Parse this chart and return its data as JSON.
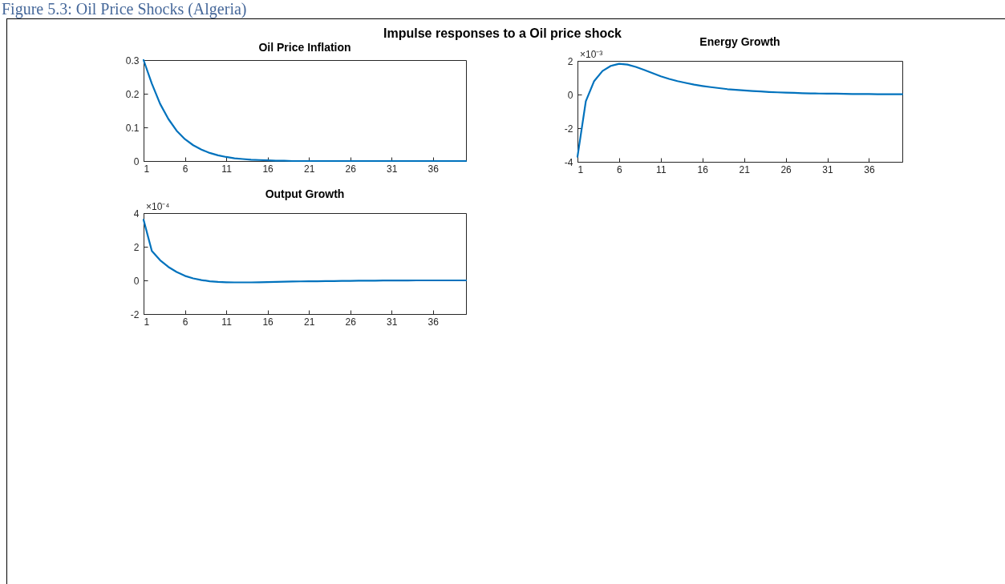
{
  "chart_data": [
    {
      "type": "other",
      "title": "Impulse responses to a Oil price shock",
      "annotations": [
        "Figure 5.3: Oil Price Shocks (Algeria)"
      ]
    },
    {
      "type": "line",
      "title": "Oil Price Inflation",
      "x": [
        1,
        2,
        3,
        4,
        5,
        6,
        7,
        8,
        9,
        10,
        11,
        12,
        13,
        14,
        15,
        16,
        17,
        18,
        19,
        20,
        21,
        22,
        23,
        24,
        25,
        26,
        27,
        28,
        29,
        30,
        31,
        32,
        33,
        34,
        35,
        36,
        37,
        38,
        39,
        40
      ],
      "values": [
        0.3,
        0.23,
        0.17,
        0.125,
        0.09,
        0.065,
        0.047,
        0.034,
        0.024,
        0.017,
        0.012,
        0.008,
        0.006,
        0.004,
        0.003,
        0.002,
        0.001,
        0.001,
        0,
        0,
        0,
        0,
        0,
        0,
        0,
        0,
        0,
        0,
        0,
        0,
        0,
        0,
        0,
        0,
        0,
        0,
        0,
        0,
        0,
        0
      ],
      "color": "#0072bd",
      "xlim": [
        1,
        40
      ],
      "xticks": [
        1,
        6,
        11,
        16,
        21,
        26,
        31,
        36
      ],
      "ylim": [
        0,
        0.3
      ],
      "yticks": [
        0,
        0.1,
        0.2,
        0.3
      ]
    },
    {
      "type": "line",
      "title": "Energy Growth",
      "annotations": [
        "×10⁻³"
      ],
      "x": [
        1,
        2,
        3,
        4,
        5,
        6,
        7,
        8,
        9,
        10,
        11,
        12,
        13,
        14,
        15,
        16,
        17,
        18,
        19,
        20,
        21,
        22,
        23,
        24,
        25,
        26,
        27,
        28,
        29,
        30,
        31,
        32,
        33,
        34,
        35,
        36,
        37,
        38,
        39,
        40
      ],
      "values": [
        -3.7,
        -0.4,
        0.8,
        1.4,
        1.7,
        1.83,
        1.78,
        1.64,
        1.46,
        1.27,
        1.08,
        0.93,
        0.8,
        0.69,
        0.59,
        0.51,
        0.44,
        0.38,
        0.32,
        0.28,
        0.24,
        0.21,
        0.18,
        0.15,
        0.13,
        0.11,
        0.1,
        0.08,
        0.07,
        0.06,
        0.05,
        0.05,
        0.04,
        0.03,
        0.03,
        0.03,
        0.02,
        0.02,
        0.02,
        0.02
      ],
      "color": "#0072bd",
      "xlim": [
        1,
        40
      ],
      "xticks": [
        1,
        6,
        11,
        16,
        21,
        26,
        31,
        36
      ],
      "ylim": [
        -4,
        2
      ],
      "yticks": [
        -4,
        -2,
        0,
        2
      ]
    },
    {
      "type": "line",
      "title": "Output Growth",
      "annotations": [
        "×10⁻⁴"
      ],
      "x": [
        1,
        2,
        3,
        4,
        5,
        6,
        7,
        8,
        9,
        10,
        11,
        12,
        13,
        14,
        15,
        16,
        17,
        18,
        19,
        20,
        21,
        22,
        23,
        24,
        25,
        26,
        27,
        28,
        29,
        30,
        31,
        32,
        33,
        34,
        35,
        36,
        37,
        38,
        39,
        40
      ],
      "values": [
        3.6,
        1.75,
        1.2,
        0.8,
        0.5,
        0.27,
        0.12,
        0.02,
        -0.05,
        -0.09,
        -0.11,
        -0.12,
        -0.12,
        -0.12,
        -0.11,
        -0.1,
        -0.09,
        -0.08,
        -0.07,
        -0.06,
        -0.05,
        -0.05,
        -0.04,
        -0.04,
        -0.03,
        -0.03,
        -0.02,
        -0.02,
        -0.02,
        -0.01,
        -0.01,
        -0.01,
        -0.01,
        0,
        0,
        0,
        0,
        0,
        0,
        0
      ],
      "color": "#0072bd",
      "xlim": [
        1,
        40
      ],
      "xticks": [
        1,
        6,
        11,
        16,
        21,
        26,
        31,
        36
      ],
      "ylim": [
        -2,
        4
      ],
      "yticks": [
        -2,
        0,
        2,
        4
      ]
    }
  ]
}
